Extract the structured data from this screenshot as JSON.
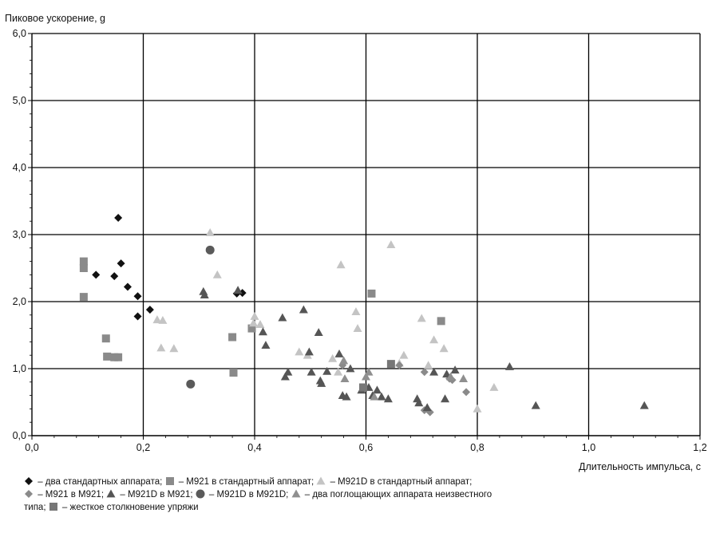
{
  "chart_data": {
    "type": "scatter",
    "ylabel": "Пиковое ускорение, g",
    "xlabel": "Длительность импульса, с",
    "xlim": [
      0.0,
      1.2
    ],
    "ylim": [
      0.0,
      6.0
    ],
    "xticks": [
      "0,0",
      "0,2",
      "0,4",
      "0,6",
      "0,8",
      "1,0",
      "1,2"
    ],
    "yticks": [
      "0,0",
      "1,0",
      "2,0",
      "3,0",
      "4,0",
      "5,0",
      "6,0"
    ],
    "grid": true,
    "legend_lines": [
      [
        {
          "marker": "diamond",
          "color": "#111111",
          "text": " – два стандартных аппарата; "
        },
        {
          "marker": "square",
          "color": "#8a8a8a",
          "text": " – M921 в стандартный аппарат; "
        },
        {
          "marker": "triangle",
          "color": "#c4c4c4",
          "text": " – M921D в стандартный аппарат;"
        }
      ],
      [
        {
          "marker": "diamond",
          "color": "#8a8a8a",
          "text": " – M921 в M921; "
        },
        {
          "marker": "triangle",
          "color": "#555555",
          "text": " – M921D в M921; "
        },
        {
          "marker": "circle",
          "color": "#5a5a5a",
          "text": " – M921D в M921D; "
        },
        {
          "marker": "triangle",
          "color": "#8f8f8f",
          "text": " – два поглощающих аппарата неизвестного"
        }
      ],
      [
        {
          "marker": "none",
          "color": "",
          "text": "типа; "
        },
        {
          "marker": "square",
          "color": "#777777",
          "text": " – жесткое столкновение упряжи"
        }
      ]
    ],
    "series": [
      {
        "marker": "diamond",
        "color": "#111111",
        "points": [
          [
            0.155,
            3.25
          ],
          [
            0.115,
            2.4
          ],
          [
            0.148,
            2.38
          ],
          [
            0.16,
            2.57
          ],
          [
            0.172,
            2.22
          ],
          [
            0.19,
            2.08
          ],
          [
            0.19,
            1.78
          ],
          [
            0.212,
            1.88
          ],
          [
            0.368,
            2.12
          ],
          [
            0.378,
            2.13
          ]
        ]
      },
      {
        "marker": "square",
        "color": "#8a8a8a",
        "points": [
          [
            0.093,
            2.6
          ],
          [
            0.093,
            2.5
          ],
          [
            0.093,
            2.07
          ],
          [
            0.133,
            1.45
          ],
          [
            0.135,
            1.18
          ],
          [
            0.148,
            1.17
          ],
          [
            0.155,
            1.17
          ],
          [
            0.36,
            1.47
          ],
          [
            0.362,
            0.94
          ],
          [
            0.395,
            1.6
          ],
          [
            0.61,
            2.12
          ],
          [
            0.735,
            1.71
          ]
        ]
      },
      {
        "marker": "triangle",
        "color": "#c4c4c4",
        "points": [
          [
            0.32,
            3.03
          ],
          [
            0.333,
            2.4
          ],
          [
            0.225,
            1.73
          ],
          [
            0.235,
            1.72
          ],
          [
            0.232,
            1.31
          ],
          [
            0.255,
            1.3
          ],
          [
            0.4,
            1.78
          ],
          [
            0.398,
            1.68
          ],
          [
            0.41,
            1.66
          ],
          [
            0.48,
            1.25
          ],
          [
            0.495,
            1.2
          ],
          [
            0.54,
            1.15
          ],
          [
            0.55,
            0.95
          ],
          [
            0.555,
            2.55
          ],
          [
            0.582,
            1.85
          ],
          [
            0.585,
            1.6
          ],
          [
            0.645,
            2.85
          ],
          [
            0.66,
            1.08
          ],
          [
            0.668,
            1.2
          ],
          [
            0.7,
            1.75
          ],
          [
            0.712,
            1.05
          ],
          [
            0.722,
            1.43
          ],
          [
            0.74,
            1.3
          ],
          [
            0.83,
            0.72
          ],
          [
            0.8,
            0.4
          ]
        ]
      },
      {
        "marker": "diamond",
        "color": "#8a8a8a",
        "points": [
          [
            0.558,
            1.05
          ],
          [
            0.66,
            1.05
          ],
          [
            0.705,
            0.95
          ],
          [
            0.705,
            0.38
          ],
          [
            0.715,
            0.35
          ],
          [
            0.75,
            0.85
          ],
          [
            0.755,
            0.83
          ],
          [
            0.78,
            0.65
          ]
        ]
      },
      {
        "marker": "triangle",
        "color": "#555555",
        "points": [
          [
            0.308,
            2.15
          ],
          [
            0.31,
            2.1
          ],
          [
            0.37,
            2.17
          ],
          [
            0.415,
            1.55
          ],
          [
            0.42,
            1.35
          ],
          [
            0.45,
            1.76
          ],
          [
            0.455,
            0.88
          ],
          [
            0.46,
            0.95
          ],
          [
            0.488,
            1.88
          ],
          [
            0.498,
            1.25
          ],
          [
            0.502,
            0.95
          ],
          [
            0.515,
            1.54
          ],
          [
            0.518,
            0.82
          ],
          [
            0.52,
            0.78
          ],
          [
            0.53,
            0.96
          ],
          [
            0.552,
            1.22
          ],
          [
            0.558,
            0.6
          ],
          [
            0.565,
            0.58
          ],
          [
            0.572,
            1.0
          ],
          [
            0.592,
            0.68
          ],
          [
            0.605,
            0.72
          ],
          [
            0.612,
            0.6
          ],
          [
            0.62,
            0.68
          ],
          [
            0.628,
            0.58
          ],
          [
            0.64,
            0.55
          ],
          [
            0.692,
            0.55
          ],
          [
            0.695,
            0.49
          ],
          [
            0.71,
            0.42
          ],
          [
            0.722,
            0.95
          ],
          [
            0.742,
            0.55
          ],
          [
            0.745,
            0.92
          ],
          [
            0.76,
            0.98
          ],
          [
            0.858,
            1.03
          ],
          [
            0.905,
            0.45
          ],
          [
            1.1,
            0.45
          ]
        ]
      },
      {
        "marker": "circle",
        "color": "#5a5a5a",
        "points": [
          [
            0.32,
            2.77
          ],
          [
            0.285,
            0.77
          ]
        ]
      },
      {
        "marker": "triangle",
        "color": "#8f8f8f",
        "points": [
          [
            0.56,
            1.12
          ],
          [
            0.562,
            0.85
          ],
          [
            0.6,
            0.88
          ],
          [
            0.605,
            0.95
          ],
          [
            0.615,
            0.58
          ],
          [
            0.752,
            0.88
          ],
          [
            0.775,
            0.85
          ]
        ]
      },
      {
        "marker": "square",
        "color": "#777777",
        "points": [
          [
            0.595,
            0.72
          ],
          [
            0.645,
            1.07
          ]
        ]
      }
    ]
  }
}
